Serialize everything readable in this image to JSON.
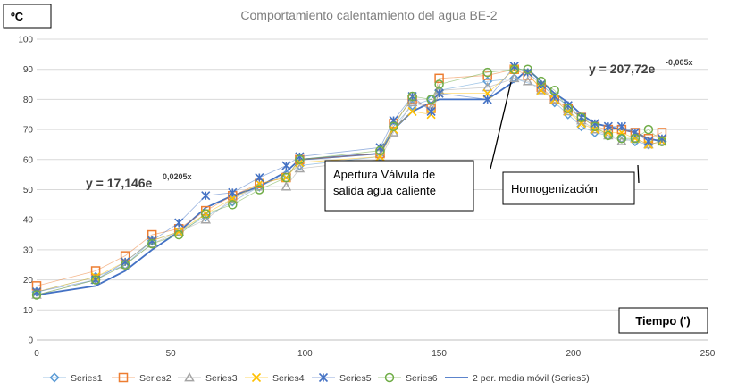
{
  "chart_data": {
    "type": "scatter",
    "title": "Comportamiento calentamiento del agua BE-2",
    "ylabel": "ºC",
    "xlabel": "Tiempo (')",
    "xlim": [
      0,
      250
    ],
    "ylim": [
      0,
      100
    ],
    "x_ticks": [
      0,
      50,
      100,
      150,
      200,
      250
    ],
    "y_ticks": [
      0,
      10,
      20,
      30,
      40,
      50,
      60,
      70,
      80,
      90,
      100
    ],
    "grid": "horizontal",
    "legend_position": "bottom",
    "series": [
      {
        "name": "Series1",
        "marker": "diamond",
        "color": "#5b9bd5",
        "x": [
          0,
          22,
          33,
          43,
          53,
          63,
          73,
          83,
          93,
          98,
          128,
          133,
          140,
          147,
          150,
          168,
          178,
          188,
          193,
          198,
          203,
          208,
          213,
          218,
          223,
          228,
          233
        ],
        "y": [
          16,
          21,
          25,
          33,
          36,
          41,
          46,
          51,
          55,
          58,
          61,
          71,
          78,
          80,
          83,
          86,
          87,
          84,
          79,
          75,
          71,
          69,
          68,
          67,
          66,
          65,
          66
        ]
      },
      {
        "name": "Series2",
        "marker": "square",
        "color": "#ed7d31",
        "x": [
          0,
          22,
          33,
          43,
          53,
          63,
          73,
          83,
          93,
          98,
          128,
          133,
          140,
          147,
          150,
          168,
          178,
          183,
          188,
          193,
          198,
          203,
          208,
          213,
          218,
          223,
          228,
          233
        ],
        "y": [
          18,
          23,
          28,
          35,
          37,
          43,
          48,
          52,
          54,
          60,
          62,
          72,
          80,
          77,
          87,
          88,
          90,
          88,
          84,
          80,
          77,
          74,
          71,
          70,
          70,
          69,
          67,
          69
        ]
      },
      {
        "name": "Series3",
        "marker": "triangle",
        "color": "#a5a5a5",
        "x": [
          0,
          22,
          33,
          43,
          53,
          63,
          73,
          83,
          93,
          98,
          128,
          133,
          140,
          147,
          150,
          168,
          178,
          183,
          188,
          193,
          198,
          203,
          208,
          213,
          218,
          223,
          228,
          233
        ],
        "y": [
          15,
          20,
          25,
          32,
          36,
          40,
          47,
          51,
          51,
          57,
          60,
          69,
          79,
          77,
          83,
          84,
          87,
          86,
          83,
          80,
          76,
          73,
          70,
          68,
          66,
          67,
          65,
          66
        ]
      },
      {
        "name": "Series4",
        "marker": "x",
        "color": "#ffc000",
        "x": [
          0,
          22,
          33,
          43,
          53,
          63,
          73,
          83,
          93,
          98,
          128,
          133,
          140,
          147,
          150,
          168,
          178,
          183,
          188,
          193,
          198,
          203,
          208,
          213,
          218,
          223,
          228,
          233
        ],
        "y": [
          16,
          21,
          26,
          33,
          36,
          42,
          47,
          52,
          54,
          59,
          61,
          70,
          76,
          75,
          82,
          82,
          90,
          89,
          83,
          80,
          76,
          72,
          70,
          69,
          69,
          67,
          65,
          66
        ]
      },
      {
        "name": "Series5",
        "marker": "star",
        "color": "#4472c4",
        "x": [
          0,
          22,
          33,
          43,
          53,
          63,
          73,
          83,
          93,
          98,
          128,
          133,
          140,
          147,
          150,
          168,
          178,
          183,
          188,
          193,
          198,
          203,
          208,
          213,
          218,
          223,
          228,
          233
        ],
        "y": [
          16,
          20,
          26,
          33,
          39,
          48,
          49,
          54,
          58,
          61,
          64,
          73,
          81,
          76,
          82,
          80,
          91,
          89,
          85,
          81,
          78,
          74,
          72,
          71,
          71,
          69,
          66,
          67
        ]
      },
      {
        "name": "Series6",
        "marker": "circle",
        "color": "#70ad47",
        "x": [
          0,
          22,
          33,
          43,
          53,
          63,
          73,
          83,
          93,
          98,
          128,
          133,
          140,
          147,
          150,
          168,
          178,
          183,
          188,
          193,
          198,
          203,
          208,
          213,
          218,
          223,
          228,
          233
        ],
        "y": [
          15,
          20,
          25,
          32,
          35,
          42,
          45,
          50,
          54,
          60,
          63,
          71,
          81,
          80,
          85,
          89,
          90,
          90,
          86,
          83,
          77,
          74,
          71,
          68,
          67,
          67,
          70,
          66
        ]
      }
    ],
    "moving_average": {
      "name": "2 per. media móvil (Series5)",
      "color": "#4472c4",
      "x": [
        0,
        22,
        33,
        43,
        53,
        63,
        73,
        83,
        93,
        98,
        128,
        133,
        140,
        147,
        150,
        168,
        178,
        183,
        188,
        193,
        198,
        203,
        208,
        213,
        218,
        223,
        228,
        233
      ],
      "y": [
        15,
        18,
        23,
        30,
        36,
        44,
        48,
        51,
        56,
        60,
        62,
        70,
        76,
        79,
        80,
        80,
        86,
        90,
        86,
        82,
        79,
        75,
        72,
        71,
        70,
        69,
        67,
        66
      ]
    },
    "annotations": [
      {
        "type": "equation",
        "base": "y = 17,146e",
        "exponent": "0,0205x"
      },
      {
        "type": "equation",
        "base": "y = 207,72e",
        "exponent": "-0,005x"
      },
      {
        "type": "box",
        "lines": [
          "Apertura Válvula de",
          "salida agua caliente"
        ]
      },
      {
        "type": "box",
        "lines": [
          "Homogenización"
        ]
      }
    ]
  }
}
